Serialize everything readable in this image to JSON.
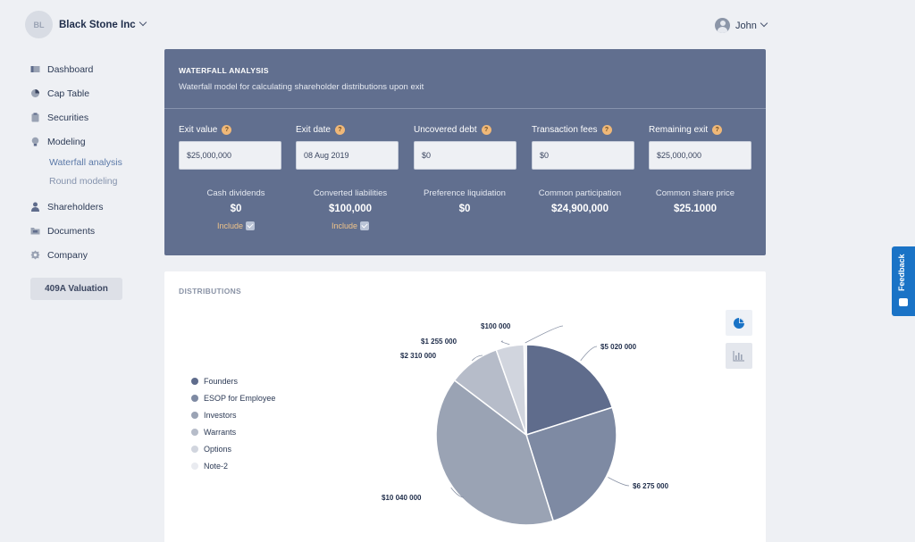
{
  "header": {
    "company_initials": "BL",
    "company_name": "Black Stone Inc",
    "user_name": "John"
  },
  "sidebar": {
    "items": [
      {
        "label": "Dashboard",
        "icon": "dashboard-icon"
      },
      {
        "label": "Cap Table",
        "icon": "pie-icon"
      },
      {
        "label": "Securities",
        "icon": "clipboard-icon"
      },
      {
        "label": "Modeling",
        "icon": "lightbulb-icon"
      },
      {
        "label": "Shareholders",
        "icon": "person-icon"
      },
      {
        "label": "Documents",
        "icon": "folder-icon"
      },
      {
        "label": "Company",
        "icon": "gear-icon"
      }
    ],
    "modeling_sub": [
      "Waterfall analysis",
      "Round modeling"
    ],
    "valuation_button": "409A Valuation"
  },
  "waterfall": {
    "title": "WATERFALL ANALYSIS",
    "subtitle": "Waterfall model for calculating shareholder distributions upon exit",
    "fields": [
      {
        "label": "Exit value",
        "value": "$25,000,000"
      },
      {
        "label": "Exit date",
        "value": "08 Aug 2019"
      },
      {
        "label": "Uncovered debt",
        "value": "$0"
      },
      {
        "label": "Transaction fees",
        "value": "$0"
      },
      {
        "label": "Remaining exit",
        "value": "$25,000,000"
      }
    ],
    "help_glyph": "?",
    "stats": [
      {
        "label": "Cash dividends",
        "value": "$0",
        "include": "Include"
      },
      {
        "label": "Converted liabilities",
        "value": "$100,000",
        "include": "Include"
      },
      {
        "label": "Preference liquidation",
        "value": "$0"
      },
      {
        "label": "Common participation",
        "value": "$24,900,000"
      },
      {
        "label": "Common share price",
        "value": "$25.1000"
      }
    ]
  },
  "distributions": {
    "title": "DISTRIBUTIONS"
  },
  "chart_data": {
    "type": "pie",
    "categories": [
      "Founders",
      "ESOP for Employee",
      "Investors",
      "Warrants",
      "Options",
      "Note-2"
    ],
    "values": [
      5020000,
      6275000,
      10040000,
      2310000,
      1255000,
      100000
    ],
    "labels": [
      "$5 020 000",
      "$6 275 000",
      "$10 040 000",
      "$2 310 000",
      "$1 255 000",
      "$100 000"
    ],
    "colors": [
      "#5f6c8c",
      "#7e8aa3",
      "#9aa3b4",
      "#b6bcc9",
      "#d1d5de",
      "#e9ebf0"
    ],
    "legend_position": "left"
  },
  "feedback": {
    "label": "Feedback"
  }
}
